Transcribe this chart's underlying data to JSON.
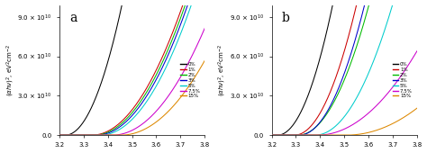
{
  "xlim": [
    3.2,
    3.8
  ],
  "ylim": [
    0,
    99000000000.0
  ],
  "yticks": [
    0,
    30000000000.0,
    60000000000.0,
    90000000000.0
  ],
  "xticks": [
    3.2,
    3.3,
    3.4,
    3.5,
    3.6,
    3.7,
    3.8
  ],
  "labels": [
    "0%",
    "1%",
    "2%",
    "3%",
    "5%",
    "7.5%",
    "15%"
  ],
  "colors": [
    "#000000",
    "#cc0000",
    "#00bb00",
    "#0000cc",
    "#00cccc",
    "#cc00cc",
    "#dd8800"
  ],
  "panel_a_label": "a",
  "panel_b_label": "b",
  "panel_a_curves": {
    "0%": {
      "x0": 3.225,
      "k": 4.5
    },
    "1%": {
      "x0": 3.335,
      "k": 2.8
    },
    "2%": {
      "x0": 3.345,
      "k": 2.8
    },
    "3%": {
      "x0": 3.355,
      "k": 2.8
    },
    "5%": {
      "x0": 3.37,
      "k": 2.8
    },
    "7.5%": {
      "x0": 3.42,
      "k": 2.5
    },
    "15%": {
      "x0": 3.455,
      "k": 2.3
    }
  },
  "panel_b_curves": {
    "0%": {
      "x0": 3.225,
      "k": 4.5
    },
    "1%": {
      "x0": 3.295,
      "k": 4.0
    },
    "2%": {
      "x0": 3.31,
      "k": 3.5
    },
    "3%": {
      "x0": 3.315,
      "k": 3.8
    },
    "5%": {
      "x0": 3.38,
      "k": 3.2
    },
    "7.5%": {
      "x0": 3.39,
      "k": 2.0
    },
    "15%": {
      "x0": 3.51,
      "k": 1.6
    }
  },
  "scale": 90000000000.0,
  "scale_b": 95000000000.0
}
